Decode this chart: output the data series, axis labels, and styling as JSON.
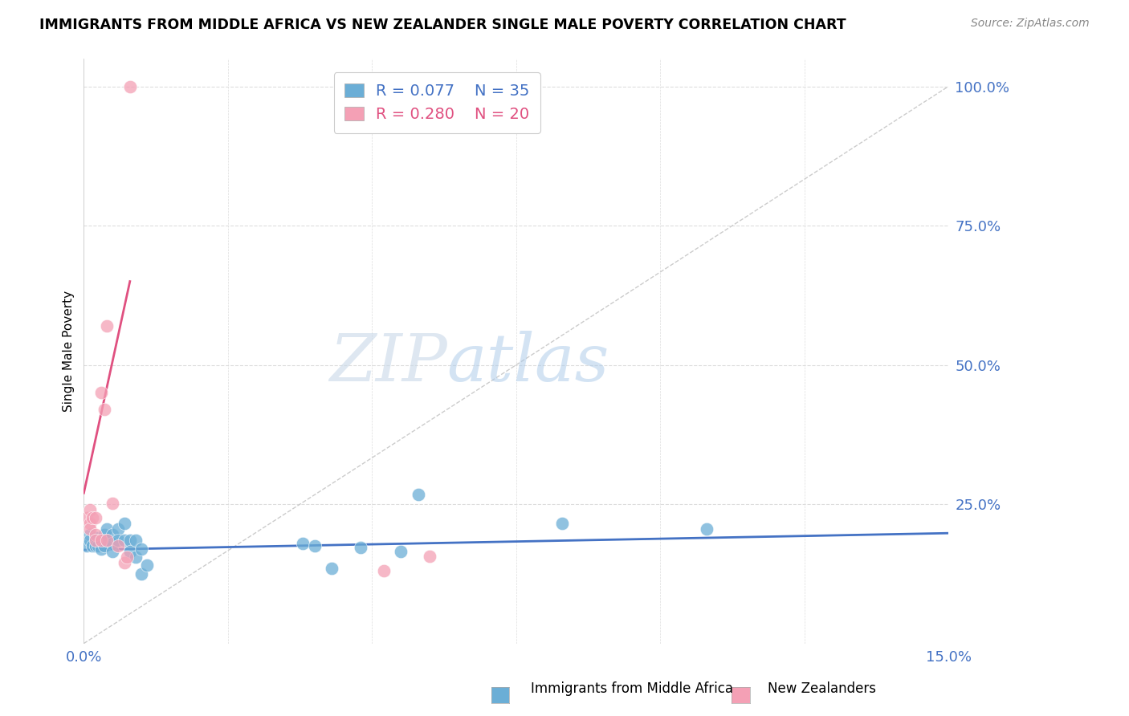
{
  "title": "IMMIGRANTS FROM MIDDLE AFRICA VS NEW ZEALANDER SINGLE MALE POVERTY CORRELATION CHART",
  "source": "Source: ZipAtlas.com",
  "ylabel": "Single Male Poverty",
  "yticks": [
    0.0,
    0.25,
    0.5,
    0.75,
    1.0
  ],
  "ytick_labels": [
    "",
    "25.0%",
    "50.0%",
    "75.0%",
    "100.0%"
  ],
  "xlim": [
    0.0,
    0.15
  ],
  "ylim": [
    0.0,
    1.05
  ],
  "legend1_r": "0.077",
  "legend1_n": "35",
  "legend2_r": "0.280",
  "legend2_n": "20",
  "blue_color": "#6baed6",
  "pink_color": "#f4a0b5",
  "blue_line_color": "#4472c4",
  "pink_line_color": "#e05080",
  "diagonal_color": "#cccccc",
  "blue_scatter_x": [
    0.0005,
    0.001,
    0.001,
    0.0015,
    0.002,
    0.002,
    0.0025,
    0.003,
    0.003,
    0.0035,
    0.0035,
    0.004,
    0.004,
    0.005,
    0.005,
    0.005,
    0.006,
    0.006,
    0.007,
    0.007,
    0.008,
    0.008,
    0.009,
    0.009,
    0.01,
    0.01,
    0.011,
    0.038,
    0.04,
    0.043,
    0.048,
    0.055,
    0.058,
    0.083,
    0.108
  ],
  "blue_scatter_y": [
    0.175,
    0.195,
    0.185,
    0.175,
    0.19,
    0.175,
    0.175,
    0.185,
    0.17,
    0.195,
    0.175,
    0.205,
    0.185,
    0.195,
    0.18,
    0.165,
    0.205,
    0.185,
    0.215,
    0.185,
    0.185,
    0.165,
    0.185,
    0.155,
    0.17,
    0.125,
    0.14,
    0.18,
    0.175,
    0.135,
    0.172,
    0.165,
    0.268,
    0.215,
    0.205
  ],
  "pink_scatter_x": [
    0.0005,
    0.001,
    0.001,
    0.001,
    0.0015,
    0.002,
    0.002,
    0.002,
    0.003,
    0.003,
    0.0035,
    0.004,
    0.004,
    0.005,
    0.006,
    0.007,
    0.0075,
    0.008,
    0.052,
    0.06
  ],
  "pink_scatter_y": [
    0.225,
    0.24,
    0.215,
    0.205,
    0.225,
    0.225,
    0.195,
    0.185,
    0.45,
    0.185,
    0.42,
    0.57,
    0.185,
    0.252,
    0.175,
    0.145,
    0.155,
    1.0,
    0.13,
    0.157
  ],
  "blue_trend_x": [
    0.0,
    0.15
  ],
  "blue_trend_y": [
    0.168,
    0.198
  ],
  "pink_trend_x": [
    0.0,
    0.008
  ],
  "pink_trend_y": [
    0.27,
    0.65
  ]
}
